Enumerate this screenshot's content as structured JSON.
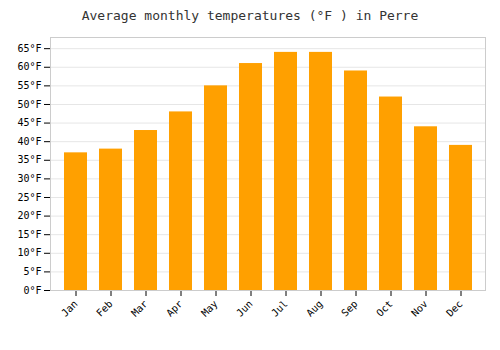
{
  "chart_data": {
    "type": "bar",
    "title": "Average monthly temperatures (°F ) in Perre",
    "categories": [
      "Jan",
      "Feb",
      "Mar",
      "Apr",
      "May",
      "Jun",
      "Jul",
      "Aug",
      "Sep",
      "Oct",
      "Nov",
      "Dec"
    ],
    "values": [
      37,
      38,
      43,
      48,
      55,
      61,
      64,
      64,
      59,
      52,
      44,
      39
    ],
    "color": "#FFA000",
    "ylim": [
      0,
      68
    ],
    "yticks": [
      {
        "value": 0,
        "label": "0°F"
      },
      {
        "value": 5,
        "label": "5°F"
      },
      {
        "value": 10,
        "label": "10°F"
      },
      {
        "value": 15,
        "label": "15°F"
      },
      {
        "value": 20,
        "label": "20°F"
      },
      {
        "value": 25,
        "label": "25°F"
      },
      {
        "value": 30,
        "label": "30°F"
      },
      {
        "value": 35,
        "label": "35°F"
      },
      {
        "value": 40,
        "label": "40°F"
      },
      {
        "value": 45,
        "label": "45°F"
      },
      {
        "value": 50,
        "label": "50°F"
      },
      {
        "value": 55,
        "label": "55°F"
      },
      {
        "value": 60,
        "label": "60°F"
      },
      {
        "value": 65,
        "label": "65°F"
      }
    ],
    "grid": true
  }
}
